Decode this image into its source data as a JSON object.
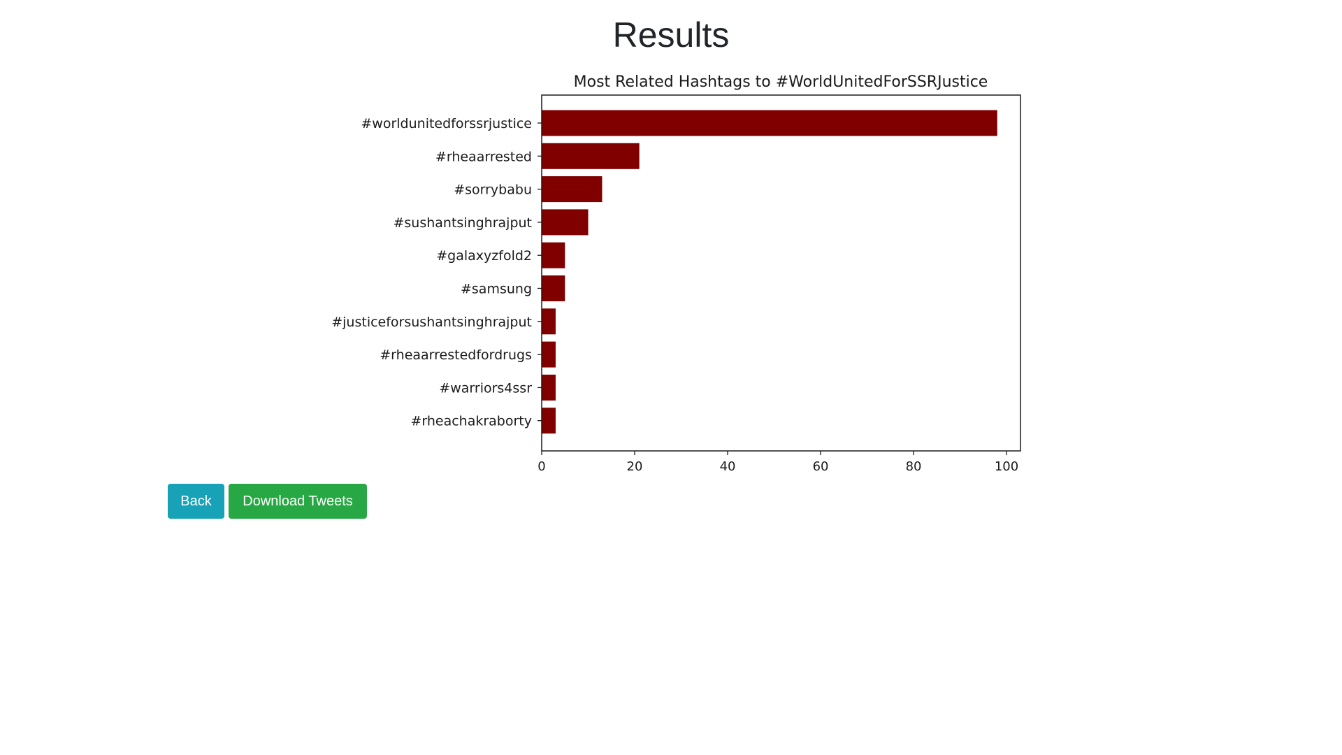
{
  "page": {
    "title": "Results"
  },
  "buttons": {
    "back_label": "Back",
    "download_label": "Download Tweets"
  },
  "colors": {
    "bar": "#800000",
    "back_button": "#17a2b8",
    "download_button": "#28a745"
  },
  "chart_data": {
    "type": "bar",
    "orientation": "horizontal",
    "title": "Most Related Hashtags to #WorldUnitedForSSRJustice",
    "xlabel": "",
    "ylabel": "",
    "categories": [
      "#worldunitedforssrjustice",
      "#rheaarrested",
      "#sorrybabu",
      "#sushantsinghrajput",
      "#galaxyzfold2",
      "#samsung",
      "#justiceforsushantsinghrajput",
      "#rheaarrestedfordrugs",
      "#warriors4ssr",
      "#rheachakraborty"
    ],
    "values": [
      98,
      21,
      13,
      10,
      5,
      5,
      3,
      3,
      3,
      3
    ],
    "xlim": [
      0,
      103
    ],
    "xticks": [
      0,
      20,
      40,
      60,
      80,
      100
    ],
    "xtick_labels": [
      "0",
      "20",
      "40",
      "60",
      "80",
      "100"
    ],
    "grid": false
  }
}
